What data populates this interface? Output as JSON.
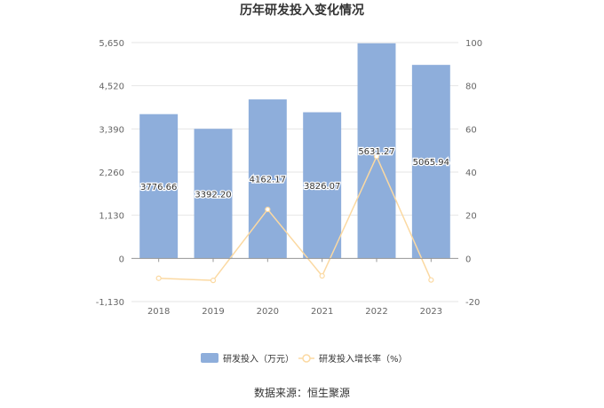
{
  "chart_data": {
    "type": "bar+line",
    "title": "历年研发投入变化情况",
    "categories": [
      "2018",
      "2019",
      "2020",
      "2021",
      "2022",
      "2023"
    ],
    "series": [
      {
        "name": "研发投入（万元）",
        "type": "bar",
        "axis": "left",
        "color": "#8eaedb",
        "values": [
          3776.66,
          3392.2,
          4162.17,
          3826.07,
          5631.27,
          5065.94
        ],
        "labels": [
          "3776.66",
          "3392.20",
          "4162.17",
          "3826.07",
          "5631.27",
          "5065.94"
        ]
      },
      {
        "name": "研发投入增长率（%）",
        "type": "line",
        "axis": "right",
        "color": "#fbd9a2",
        "values": [
          -9.2,
          -10.2,
          22.7,
          -8.1,
          47.2,
          -10.0
        ]
      }
    ],
    "left_axis": {
      "ticks": [
        -1130,
        0,
        1130,
        2260,
        3390,
        4520,
        5650
      ],
      "tick_labels": [
        "-1,130",
        "0",
        "1,130",
        "2,260",
        "3,390",
        "4,520",
        "5,650"
      ],
      "ylim": [
        -1130,
        5650
      ]
    },
    "right_axis": {
      "ticks": [
        -20,
        0,
        20,
        40,
        60,
        80,
        100
      ],
      "tick_labels": [
        "-20",
        "0",
        "20",
        "40",
        "60",
        "80",
        "100"
      ],
      "ylim": [
        -20,
        100
      ]
    },
    "grid": true,
    "legend_position": "bottom-center",
    "source": "数据来源：恒生聚源"
  }
}
